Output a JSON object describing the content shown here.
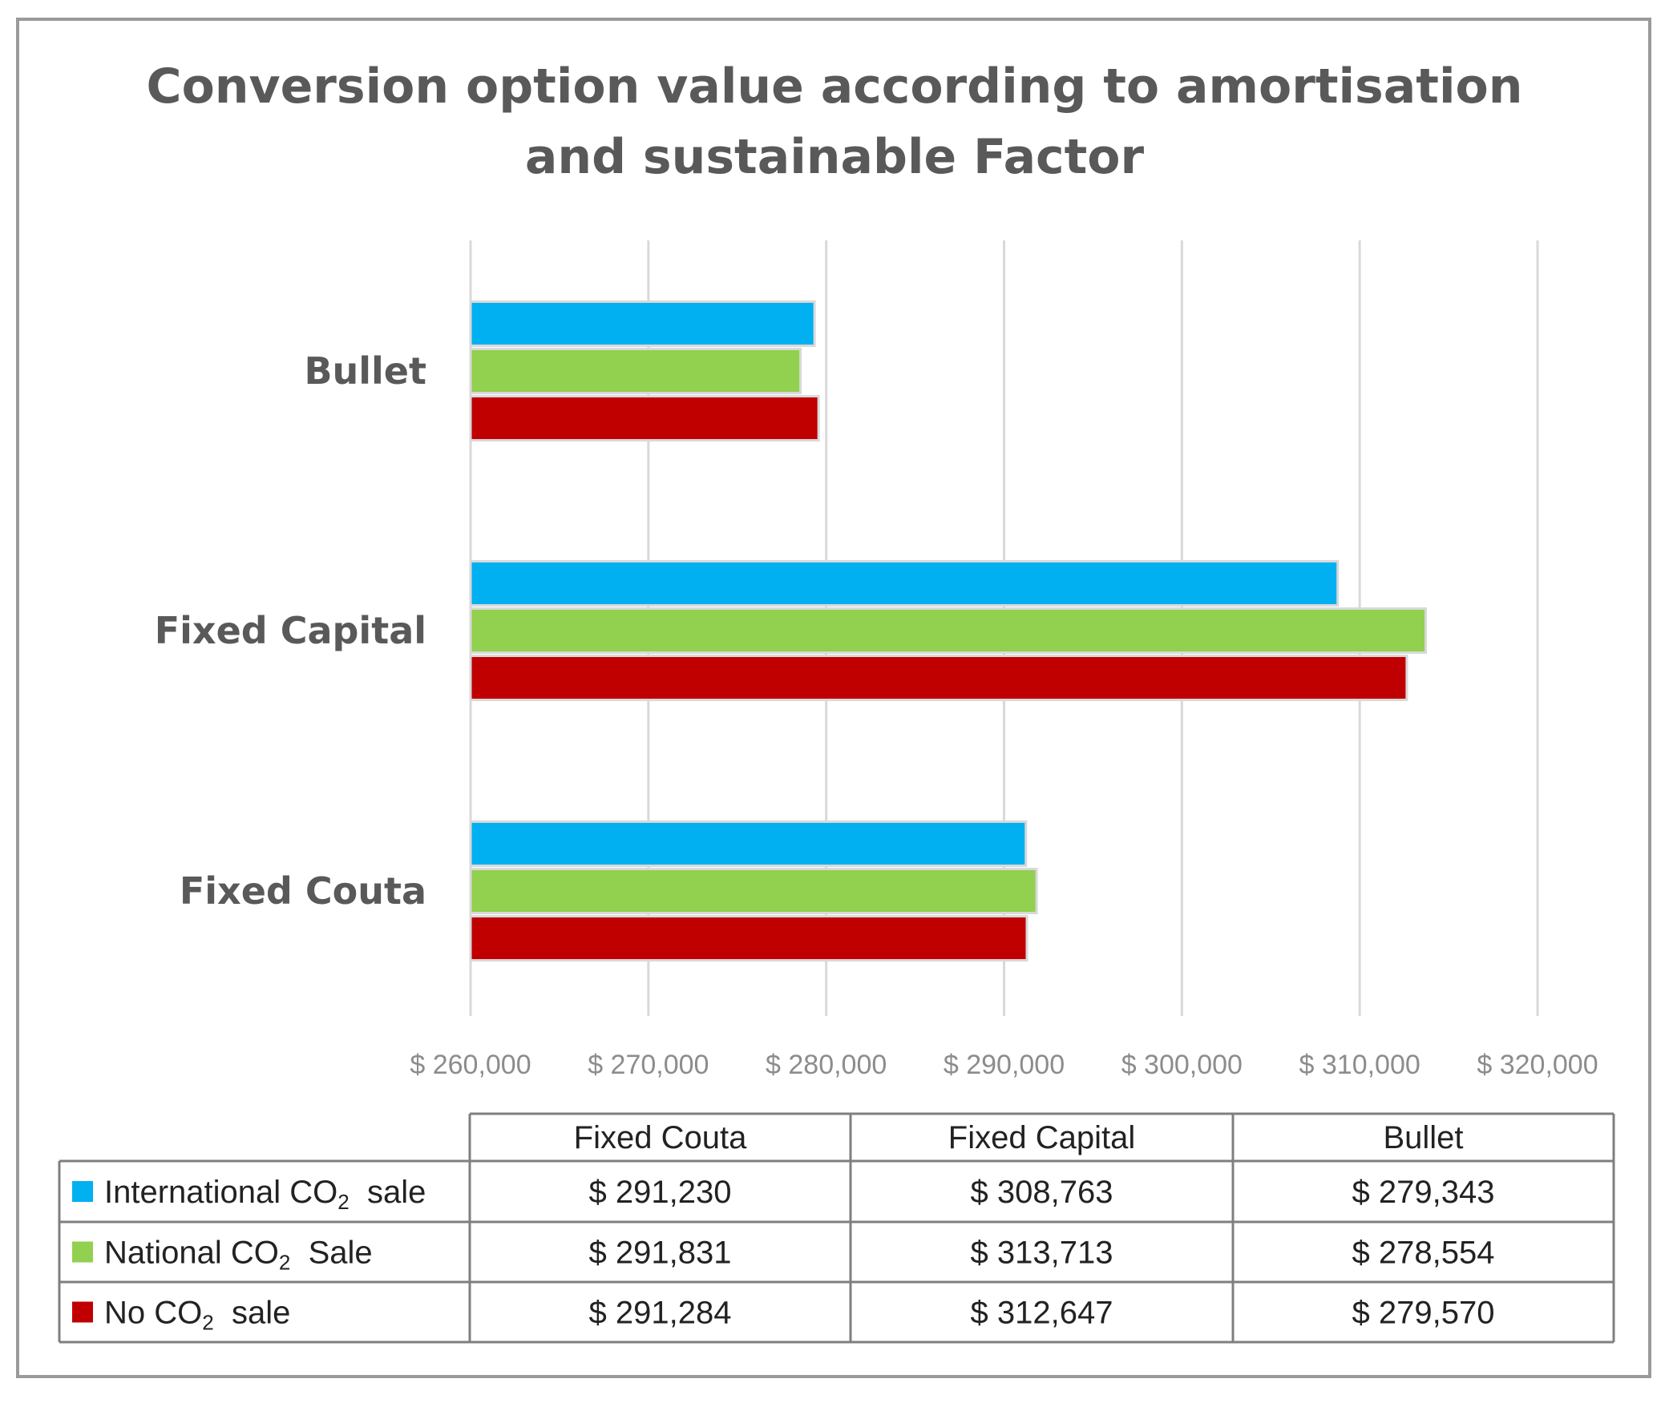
{
  "chart_data": {
    "type": "bar",
    "orientation": "horizontal",
    "title_lines": [
      "Conversion option value according to amortisation",
      "and sustainable Factor"
    ],
    "categories": [
      "Fixed Couta",
      "Fixed Capital",
      "Bullet"
    ],
    "series": [
      {
        "name": "International CO₂ sale",
        "label_parts": [
          "International CO",
          "2",
          " sale"
        ],
        "color": "#00b0f0",
        "values": [
          291230,
          308763,
          279343
        ],
        "value_labels": [
          "$ 291,230",
          "$ 308,763",
          "$ 279,343"
        ]
      },
      {
        "name": "National CO₂ Sale",
        "label_parts": [
          "National CO",
          "2",
          " Sale"
        ],
        "color": "#92d050",
        "values": [
          291831,
          313713,
          278554
        ],
        "value_labels": [
          "$ 291,831",
          "$ 313,713",
          "$ 278,554"
        ]
      },
      {
        "name": "No CO₂ sale",
        "label_parts": [
          "No CO",
          "2",
          " sale"
        ],
        "color": "#c00000",
        "values": [
          291284,
          312647,
          279570
        ],
        "value_labels": [
          "$ 291,284",
          "$ 312,647",
          "$ 279,570"
        ]
      }
    ],
    "xlim": [
      260000,
      320000
    ],
    "x_ticks": [
      260000,
      270000,
      280000,
      290000,
      300000,
      310000,
      320000
    ],
    "x_tick_labels": [
      "$ 260,000",
      "$ 270,000",
      "$ 280,000",
      "$ 290,000",
      "$ 300,000",
      "$ 310,000",
      "$ 320,000"
    ],
    "grid": true,
    "legend": "data-table-below"
  }
}
